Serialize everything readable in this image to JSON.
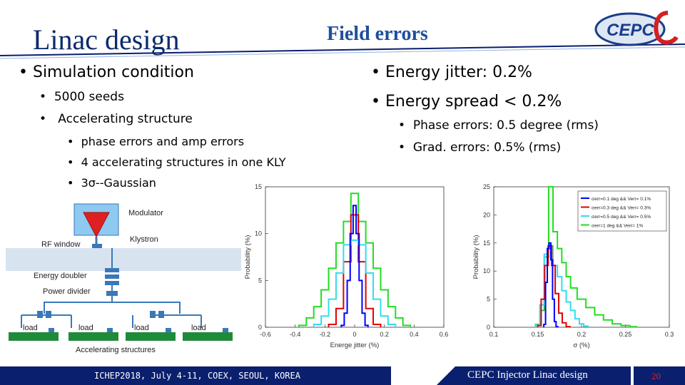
{
  "slide": {
    "title_left": "Linac design",
    "title_center": "Field errors",
    "logo_text": "CEPC"
  },
  "left_bullets": {
    "l1": "Simulation condition",
    "l2_a": "5000 seeds",
    "l2_b": "Accelerating structure",
    "l3_a": "phase errors and amp errors",
    "l3_b": "4 accelerating structures in one KLY",
    "l3_c": "3σ--Gaussian"
  },
  "right_bullets": {
    "l1_a": "Energy jitter: 0.2%",
    "l1_b": "Energy spread < 0.2%",
    "l2_a": "Phase errors: 0.5 degree (rms)",
    "l2_b": "Grad. errors:   0.5%  (rms)"
  },
  "diagram": {
    "modulator": "Modulator",
    "klystron": "Klystron",
    "rf_window": "RF window",
    "energy_doubler": "Energy doubler",
    "power_divider": "Power divider",
    "load": "load",
    "accelerating_structures": "Accelerating structures"
  },
  "footer": {
    "conference": "ICHEP2018, July 4-11, COEX, SEOUL, KOREA",
    "talk": "CEPC Injector Linac design",
    "page": "20"
  },
  "colors": {
    "blue": "#0000ff",
    "red": "#e00000",
    "cyan": "#33ddee",
    "green": "#22dd22",
    "footer": "#0a1f6e"
  },
  "chart_data": [
    {
      "type": "line",
      "step": true,
      "xlabel": "Energe jitter (%)",
      "ylabel": "Probability (%)",
      "xlim": [
        -0.6,
        0.6
      ],
      "ylim": [
        0,
        15
      ],
      "xticks": [
        -0.6,
        -0.4,
        -0.2,
        0,
        0.2,
        0.4,
        0.6
      ],
      "xtick_labels": [
        "-0.6",
        "-0.4",
        "-0.2",
        "0",
        "0.2",
        "0.4",
        "0.6"
      ],
      "yticks": [
        0,
        5,
        10,
        15
      ],
      "ytick_labels": [
        "0",
        "5",
        "10",
        "15"
      ],
      "series": [
        {
          "color": "#22dd22",
          "bins": [
            -0.35,
            -0.3,
            -0.25,
            -0.2,
            -0.15,
            -0.1,
            -0.05,
            0,
            0.05,
            0.1,
            0.15,
            0.2,
            0.25,
            0.3,
            0.35
          ],
          "values": [
            0.2,
            1,
            2.2,
            4,
            6.3,
            9,
            11.3,
            14.3,
            11.3,
            9,
            6.3,
            4,
            2.2,
            1,
            0.2
          ]
        },
        {
          "color": "#e00000",
          "bins": [
            -0.15,
            -0.1,
            -0.05,
            0,
            0.05,
            0.1,
            0.15
          ],
          "values": [
            0.3,
            2,
            7,
            12,
            7,
            2,
            0.3
          ]
        },
        {
          "color": "#33ddee",
          "bins": [
            -0.25,
            -0.2,
            -0.15,
            -0.1,
            -0.05,
            0,
            0.05,
            0.1,
            0.15,
            0.2,
            0.25
          ],
          "values": [
            0.3,
            1.2,
            3,
            5.8,
            8.8,
            9.3,
            8.8,
            5.8,
            3,
            1.2,
            0.3
          ]
        },
        {
          "color": "#0000ff",
          "bins": [
            -0.08,
            -0.06,
            -0.04,
            -0.02,
            0,
            0.02,
            0.04,
            0.06,
            0.08
          ],
          "values": [
            0.2,
            1.5,
            5,
            10,
            13,
            10,
            5,
            1.5,
            0.2
          ]
        }
      ]
    },
    {
      "type": "line",
      "step": true,
      "xlabel": "σ  (%)",
      "ylabel": "Probability (%)",
      "xlim": [
        0.1,
        0.3
      ],
      "ylim": [
        0,
        25
      ],
      "xticks": [
        0.1,
        0.15,
        0.2,
        0.25,
        0.3
      ],
      "xtick_labels": [
        "0.1",
        "0.15",
        "0.2",
        "0.25",
        "0.3"
      ],
      "yticks": [
        0,
        5,
        10,
        15,
        20,
        25
      ],
      "ytick_labels": [
        "0",
        "5",
        "10",
        "15",
        "20",
        "25"
      ],
      "legend": [
        "σerr=0.1 deg && Verr= 0.1%",
        "σerr=0.3 deg && Verr= 0.3%",
        "σerr=0.5 deg && Verr= 0.5%",
        "σerr=1 deg && Verr= 1%"
      ],
      "legend_colors": [
        "#0000ff",
        "#e00000",
        "#33ddee",
        "#22dd22"
      ],
      "legend_position": "top-right",
      "series": [
        {
          "color": "#22dd22",
          "bins": [
            0.15,
            0.155,
            0.16,
            0.165,
            0.17,
            0.175,
            0.18,
            0.185,
            0.19,
            0.2,
            0.21,
            0.22,
            0.23,
            0.24,
            0.25,
            0.26
          ],
          "values": [
            0.5,
            3,
            12.5,
            25,
            17,
            14,
            11.5,
            9,
            7,
            5,
            3.5,
            2.2,
            1.3,
            0.6,
            0.3,
            0.1
          ]
        },
        {
          "color": "#33ddee",
          "bins": [
            0.15,
            0.155,
            0.16,
            0.165,
            0.17,
            0.175,
            0.18,
            0.185,
            0.19,
            0.195,
            0.2,
            0.205
          ],
          "values": [
            0.4,
            4,
            13,
            14.5,
            11,
            9,
            6.5,
            4.5,
            3,
            1.5,
            0.6,
            0.2
          ]
        },
        {
          "color": "#e00000",
          "bins": [
            0.152,
            0.156,
            0.16,
            0.164,
            0.168,
            0.172,
            0.176,
            0.18,
            0.185
          ],
          "values": [
            0.3,
            5,
            11,
            14.5,
            11,
            6,
            2.5,
            0.8,
            0.1
          ]
        },
        {
          "color": "#0000ff",
          "bins": [
            0.158,
            0.16,
            0.162,
            0.164,
            0.166,
            0.168,
            0.17,
            0.172
          ],
          "values": [
            0.5,
            8,
            14,
            15,
            12,
            5,
            1,
            0.1
          ]
        }
      ]
    }
  ]
}
